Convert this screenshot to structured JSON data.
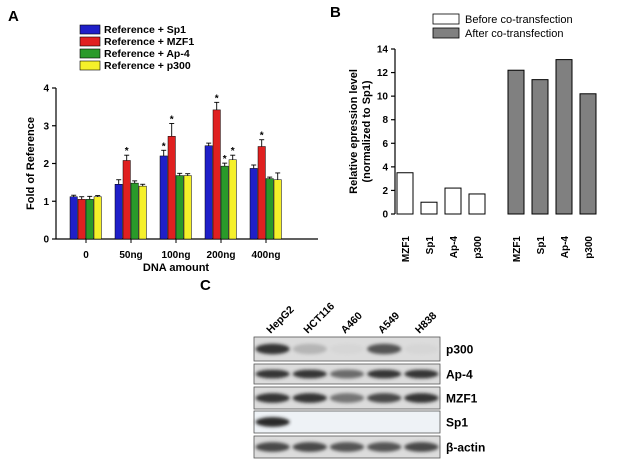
{
  "panels": {
    "a": "A",
    "b": "B",
    "c": "C"
  },
  "chart_data": [
    {
      "type": "bar",
      "panel": "A",
      "categories": [
        "0",
        "50ng",
        "100ng",
        "200ng",
        "400ng"
      ],
      "series": [
        {
          "name": "Reference + Sp1",
          "color": "#1f1fc8",
          "values": [
            1.12,
            1.45,
            2.2,
            2.47,
            1.87
          ],
          "errors": [
            0.04,
            0.12,
            0.15,
            0.07,
            0.09
          ]
        },
        {
          "name": "Reference + MZF1",
          "color": "#e02020",
          "values": [
            1.05,
            2.08,
            2.72,
            3.42,
            2.45
          ],
          "errors": [
            0.07,
            0.14,
            0.34,
            0.2,
            0.18
          ]
        },
        {
          "name": "Reference + Ap-4",
          "color": "#2a9a2a",
          "values": [
            1.05,
            1.48,
            1.68,
            1.93,
            1.6
          ],
          "errors": [
            0.08,
            0.06,
            0.06,
            0.08,
            0.04
          ]
        },
        {
          "name": "Reference + p300",
          "color": "#f5f02a",
          "values": [
            1.12,
            1.4,
            1.68,
            2.1,
            1.57
          ],
          "errors": [
            0.03,
            0.05,
            0.05,
            0.12,
            0.18
          ]
        }
      ],
      "significance": [
        {
          "category": "50ng",
          "series": "Reference + MZF1",
          "label": "*"
        },
        {
          "category": "100ng",
          "series": "Reference + Sp1",
          "label": "*"
        },
        {
          "category": "100ng",
          "series": "Reference + MZF1",
          "label": "*"
        },
        {
          "category": "200ng",
          "series": "Reference + MZF1",
          "label": "*"
        },
        {
          "category": "200ng",
          "series": "Reference + Ap-4",
          "label": "*"
        },
        {
          "category": "200ng",
          "series": "Reference + p300",
          "label": "*"
        },
        {
          "category": "400ng",
          "series": "Reference + MZF1",
          "label": "*"
        }
      ],
      "xlabel": "DNA amount",
      "ylabel": "Fold of Reference",
      "ylim": [
        0,
        4
      ],
      "yticks": [
        "0",
        "1",
        "2",
        "3",
        "4"
      ],
      "legend": "top-right"
    },
    {
      "type": "bar",
      "panel": "B",
      "categories": [
        "MZF1",
        "Sp1",
        "Ap-4",
        "p300",
        "MZF1",
        "Sp1",
        "Ap-4",
        "p300"
      ],
      "series": [
        {
          "name": "Before co-transfection",
          "color": "#ffffff",
          "values": [
            3.5,
            1.0,
            2.2,
            1.7,
            null,
            null,
            null,
            null
          ]
        },
        {
          "name": "After co-transfection",
          "color": "#808080",
          "values": [
            null,
            null,
            null,
            null,
            12.2,
            11.4,
            13.1,
            10.2
          ]
        }
      ],
      "ylabel_line1": "Relative epression level",
      "ylabel_line2": "(normalized to Sp1)",
      "ylim": [
        0,
        14
      ],
      "yticks": [
        "0",
        "2",
        "4",
        "6",
        "8",
        "10",
        "12",
        "14"
      ],
      "legend": "top-right"
    }
  ],
  "blot": {
    "lanes": [
      "HepG2",
      "HCT116",
      "A460",
      "A549",
      "H838"
    ],
    "rows": [
      {
        "label": "p300",
        "intensity": [
          0.85,
          0.25,
          0.1,
          0.7,
          0.1
        ]
      },
      {
        "label": "Ap-4",
        "intensity": [
          0.85,
          0.85,
          0.6,
          0.85,
          0.85
        ]
      },
      {
        "label": "MZF1",
        "intensity": [
          0.85,
          0.85,
          0.55,
          0.75,
          0.85
        ]
      },
      {
        "label": "Sp1",
        "intensity": [
          0.9,
          0.0,
          0.0,
          0.0,
          0.0
        ]
      },
      {
        "label": "β-actin",
        "intensity": [
          0.75,
          0.75,
          0.7,
          0.7,
          0.75
        ]
      }
    ]
  }
}
